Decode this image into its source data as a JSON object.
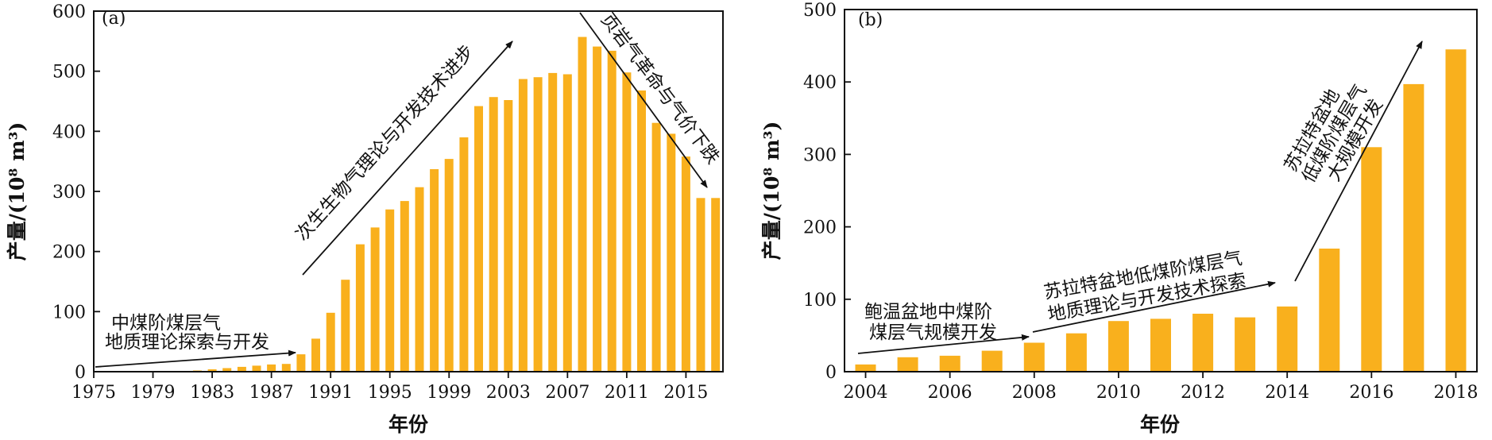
{
  "chart_data": [
    {
      "type": "bar",
      "panel_label": "(a)",
      "xlabel": "年份",
      "ylabel": "产量/(10⁸ m³)",
      "ylim": [
        0,
        600
      ],
      "yticks": [
        0,
        100,
        200,
        300,
        400,
        500,
        600
      ],
      "x": [
        1982,
        1983,
        1984,
        1985,
        1986,
        1987,
        1988,
        1989,
        1990,
        1991,
        1992,
        1993,
        1994,
        1995,
        1996,
        1997,
        1998,
        1999,
        2000,
        2001,
        2002,
        2003,
        2004,
        2005,
        2006,
        2007,
        2008,
        2009,
        2010,
        2011,
        2012,
        2013,
        2014,
        2015,
        2016,
        2017
      ],
      "values": [
        2,
        4,
        6,
        8,
        10,
        12,
        13,
        29,
        55,
        98,
        153,
        212,
        240,
        270,
        284,
        307,
        337,
        354,
        390,
        442,
        457,
        452,
        487,
        490,
        497,
        495,
        557,
        541,
        534,
        498,
        468,
        414,
        396,
        358,
        289,
        289
      ],
      "color": "#F9B01D",
      "xticks": [
        "1975",
        "1979",
        "1983",
        "1987",
        "1991",
        "1995",
        "1999",
        "2003",
        "2007",
        "2011",
        "2015"
      ],
      "annotations": [
        {
          "lines": [
            "中煤阶煤层气",
            "地质理论探索与开发"
          ]
        },
        {
          "lines": [
            "次生生物气理论与开发技术进步"
          ]
        },
        {
          "lines": [
            "页岩气革命与气价下跌"
          ]
        }
      ]
    },
    {
      "type": "bar",
      "panel_label": "(b)",
      "xlabel": "年份",
      "ylabel": "产量/(10⁸ m³)",
      "ylim": [
        0,
        500
      ],
      "yticks": [
        0,
        100,
        200,
        300,
        400,
        500
      ],
      "x": [
        2004,
        2005,
        2006,
        2007,
        2008,
        2009,
        2010,
        2011,
        2012,
        2013,
        2014,
        2015,
        2016,
        2017,
        2018
      ],
      "values": [
        10,
        20,
        22,
        29,
        40,
        53,
        70,
        73,
        80,
        75,
        90,
        170,
        310,
        397,
        445
      ],
      "color": "#F9B01D",
      "xticks": [
        "2004",
        "2006",
        "2008",
        "2010",
        "2012",
        "2014",
        "2016",
        "2018"
      ],
      "annotations": [
        {
          "lines": [
            "鲍温盆地中煤阶",
            "煤层气规模开发"
          ]
        },
        {
          "lines": [
            "苏拉特盆地低煤阶煤层气",
            "地质理论与开发技术探索"
          ]
        },
        {
          "lines": [
            "苏拉特盆地",
            "低煤阶煤层气",
            "大规模开发"
          ]
        }
      ]
    }
  ]
}
